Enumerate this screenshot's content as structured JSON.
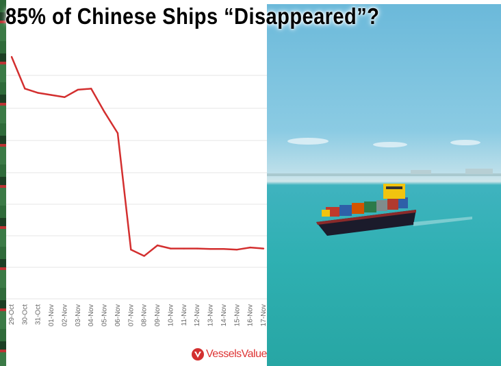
{
  "headline": "85% of Chinese Ships “Disappeared”?",
  "brand": {
    "name": "VesselsValue",
    "accent": "#d32f2f"
  },
  "photo": {
    "subject": "container-ship-at-sea"
  },
  "chart_data": {
    "type": "line",
    "title": "",
    "xlabel": "",
    "ylabel": "",
    "grid": true,
    "legend": "none",
    "line_color": "#d32f2f",
    "categories": [
      "29-Oct",
      "30-Oct",
      "31-Oct",
      "01-Nov",
      "02-Nov",
      "03-Nov",
      "04-Nov",
      "05-Nov",
      "06-Nov",
      "07-Nov",
      "08-Nov",
      "09-Nov",
      "10-Nov",
      "11-Nov",
      "12-Nov",
      "13-Nov",
      "14-Nov",
      "15-Nov",
      "16-Nov",
      "17-Nov"
    ],
    "series": [
      {
        "values": [
          100,
          85,
          83,
          82,
          81,
          84.5,
          85,
          74,
          64,
          9,
          6,
          11,
          9.5,
          9.5,
          9.5,
          9.3,
          9.3,
          9,
          10,
          9.5
        ]
      }
    ]
  }
}
